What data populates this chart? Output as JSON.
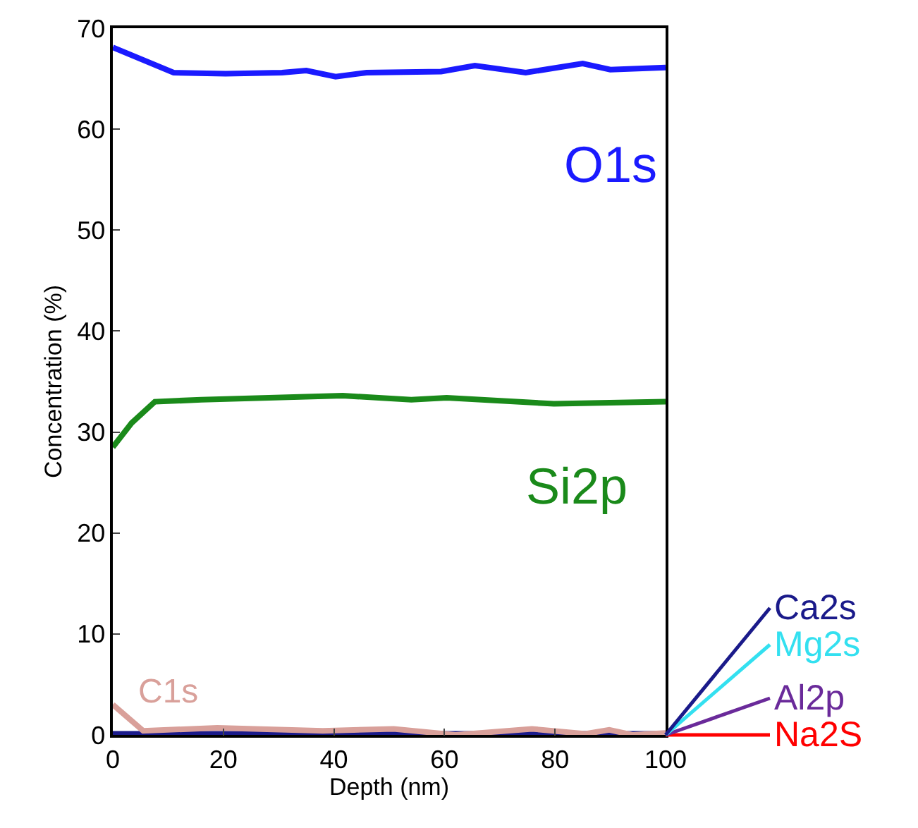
{
  "chart_data": {
    "type": "line",
    "xlabel": "Depth (nm)",
    "ylabel": "Concentration (%)",
    "xlim": [
      0,
      100
    ],
    "xticks": [
      0,
      20,
      40,
      60,
      80,
      100
    ],
    "ylim": [
      0,
      70
    ],
    "yticks": [
      0,
      10,
      20,
      30,
      40,
      50,
      60,
      70
    ],
    "grid": false,
    "legend": "bottom right",
    "marker": "none",
    "line_style": "solid",
    "series": [
      {
        "name": "Na2S",
        "color": "#ff0000",
        "values": [
          null
        ]
      },
      {
        "name": "Al2p",
        "color": "#6a2a9a",
        "values": [
          null
        ]
      },
      {
        "name": "Mg2s",
        "color": "#33e0f0",
        "values": [
          null
        ]
      },
      {
        "name": "Ca2s",
        "color": "#1a1a8a",
        "x": [
          0,
          100
        ],
        "values": [
          0.1,
          0.1
        ]
      },
      {
        "name": "C1s",
        "color": "#d9a09a",
        "x": [
          0,
          5.5,
          18.9,
          38,
          50.8,
          62,
          75.8,
          85.5,
          89.8,
          94,
          100
        ],
        "values": [
          3,
          0.4,
          0.7,
          0.4,
          0.6,
          0,
          0.6,
          0.1,
          0.5,
          0,
          0.2
        ]
      },
      {
        "name": "Si2p",
        "color": "#1a8a1a",
        "x": [
          0,
          3.4,
          7.6,
          16,
          41.6,
          54,
          60.4,
          79.8,
          100
        ],
        "values": [
          28.5,
          30.9,
          33,
          33.2,
          33.6,
          33.2,
          33.4,
          32.8,
          33
        ]
      },
      {
        "name": "O1s",
        "color": "#1a1aff",
        "x": [
          0,
          11,
          20.4,
          30.6,
          35,
          40.3,
          45.9,
          59.4,
          65.5,
          74.7,
          85,
          90,
          100
        ],
        "values": [
          68.1,
          65.6,
          65.5,
          65.6,
          65.8,
          65.2,
          65.6,
          65.7,
          66.3,
          65.6,
          66.5,
          65.9,
          66.1
        ]
      }
    ]
  }
}
